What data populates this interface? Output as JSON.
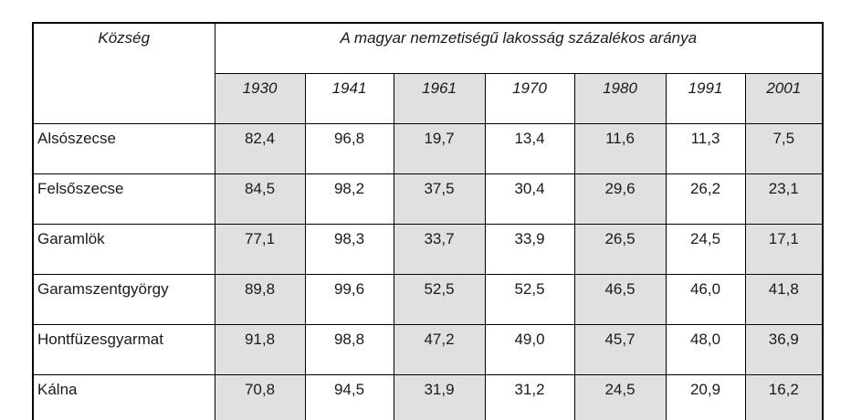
{
  "table": {
    "corner_label": "Község",
    "title": "A magyar nemzetiségű lakosság százalékos aránya",
    "years": [
      "1930",
      "1941",
      "1961",
      "1970",
      "1980",
      "1991",
      "2001"
    ],
    "shaded_year_indexes": [
      0,
      2,
      4,
      6
    ],
    "rows": [
      {
        "name": "Alsószecse",
        "values": [
          "82,4",
          "96,8",
          "19,7",
          "13,4",
          "11,6",
          "11,3",
          "7,5"
        ]
      },
      {
        "name": "Felsőszecse",
        "values": [
          "84,5",
          "98,2",
          "37,5",
          "30,4",
          "29,6",
          "26,2",
          "23,1"
        ]
      },
      {
        "name": "Garamlök",
        "values": [
          "77,1",
          "98,3",
          "33,7",
          "33,9",
          "26,5",
          "24,5",
          "17,1"
        ]
      },
      {
        "name": "Garamszentgyörgy",
        "values": [
          "89,8",
          "99,6",
          "52,5",
          "52,5",
          "46,5",
          "46,0",
          "41,8"
        ]
      },
      {
        "name": "Hontfüzesgyarmat",
        "values": [
          "91,8",
          "98,8",
          "47,2",
          "49,0",
          "45,7",
          "48,0",
          "36,9"
        ]
      },
      {
        "name": "Kálna",
        "values": [
          "70,8",
          "94,5",
          "31,9",
          "31,2",
          "24,5",
          "20,9",
          "16,2"
        ]
      }
    ],
    "colors": {
      "shaded_column_bg": "#e0e0e0",
      "border": "#000000",
      "text": "#1a1a1a"
    }
  },
  "chart_data": {
    "type": "table",
    "title": "A magyar nemzetiségű lakosság százalékos aránya",
    "row_header": "Község",
    "categories": [
      "1930",
      "1941",
      "1961",
      "1970",
      "1980",
      "1991",
      "2001"
    ],
    "series": [
      {
        "name": "Alsószecse",
        "values": [
          82.4,
          96.8,
          19.7,
          13.4,
          11.6,
          11.3,
          7.5
        ]
      },
      {
        "name": "Felsőszecse",
        "values": [
          84.5,
          98.2,
          37.5,
          30.4,
          29.6,
          26.2,
          23.1
        ]
      },
      {
        "name": "Garamlök",
        "values": [
          77.1,
          98.3,
          33.7,
          33.9,
          26.5,
          24.5,
          17.1
        ]
      },
      {
        "name": "Garamszentgyörgy",
        "values": [
          89.8,
          99.6,
          52.5,
          52.5,
          46.5,
          46.0,
          41.8
        ]
      },
      {
        "name": "Hontfüzesgyarmat",
        "values": [
          91.8,
          98.8,
          47.2,
          49.0,
          45.7,
          48.0,
          36.9
        ]
      },
      {
        "name": "Kálna",
        "values": [
          70.8,
          94.5,
          31.9,
          31.2,
          24.5,
          20.9,
          16.2
        ]
      }
    ]
  }
}
